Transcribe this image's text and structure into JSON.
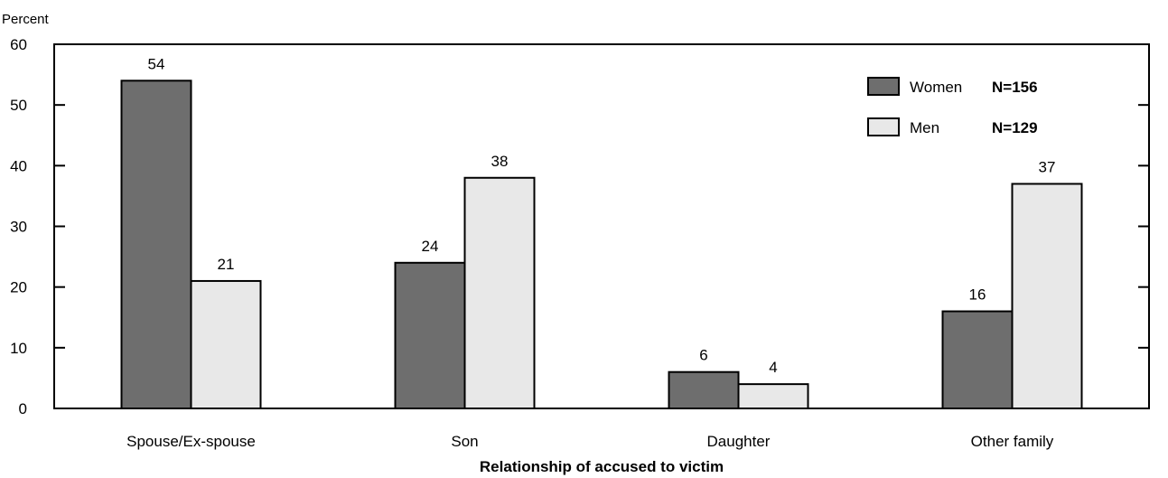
{
  "chart_data": {
    "type": "bar",
    "title": "",
    "ylabel": "Percent",
    "xlabel": "Relationship of accused to victim",
    "ylim": [
      0,
      60
    ],
    "yticks": [
      0,
      10,
      20,
      30,
      40,
      50,
      60
    ],
    "categories": [
      "Spouse/Ex-spouse",
      "Son",
      "Daughter",
      "Other family"
    ],
    "series": [
      {
        "name": "Women",
        "n_label": "N=156",
        "color": "#6e6e6e",
        "values": [
          54,
          24,
          6,
          16
        ]
      },
      {
        "name": "Men",
        "n_label": "N=129",
        "color": "#e8e8e8",
        "values": [
          21,
          38,
          4,
          37
        ]
      }
    ],
    "grid": false,
    "legend_position": "top-right",
    "data_labels": true
  }
}
